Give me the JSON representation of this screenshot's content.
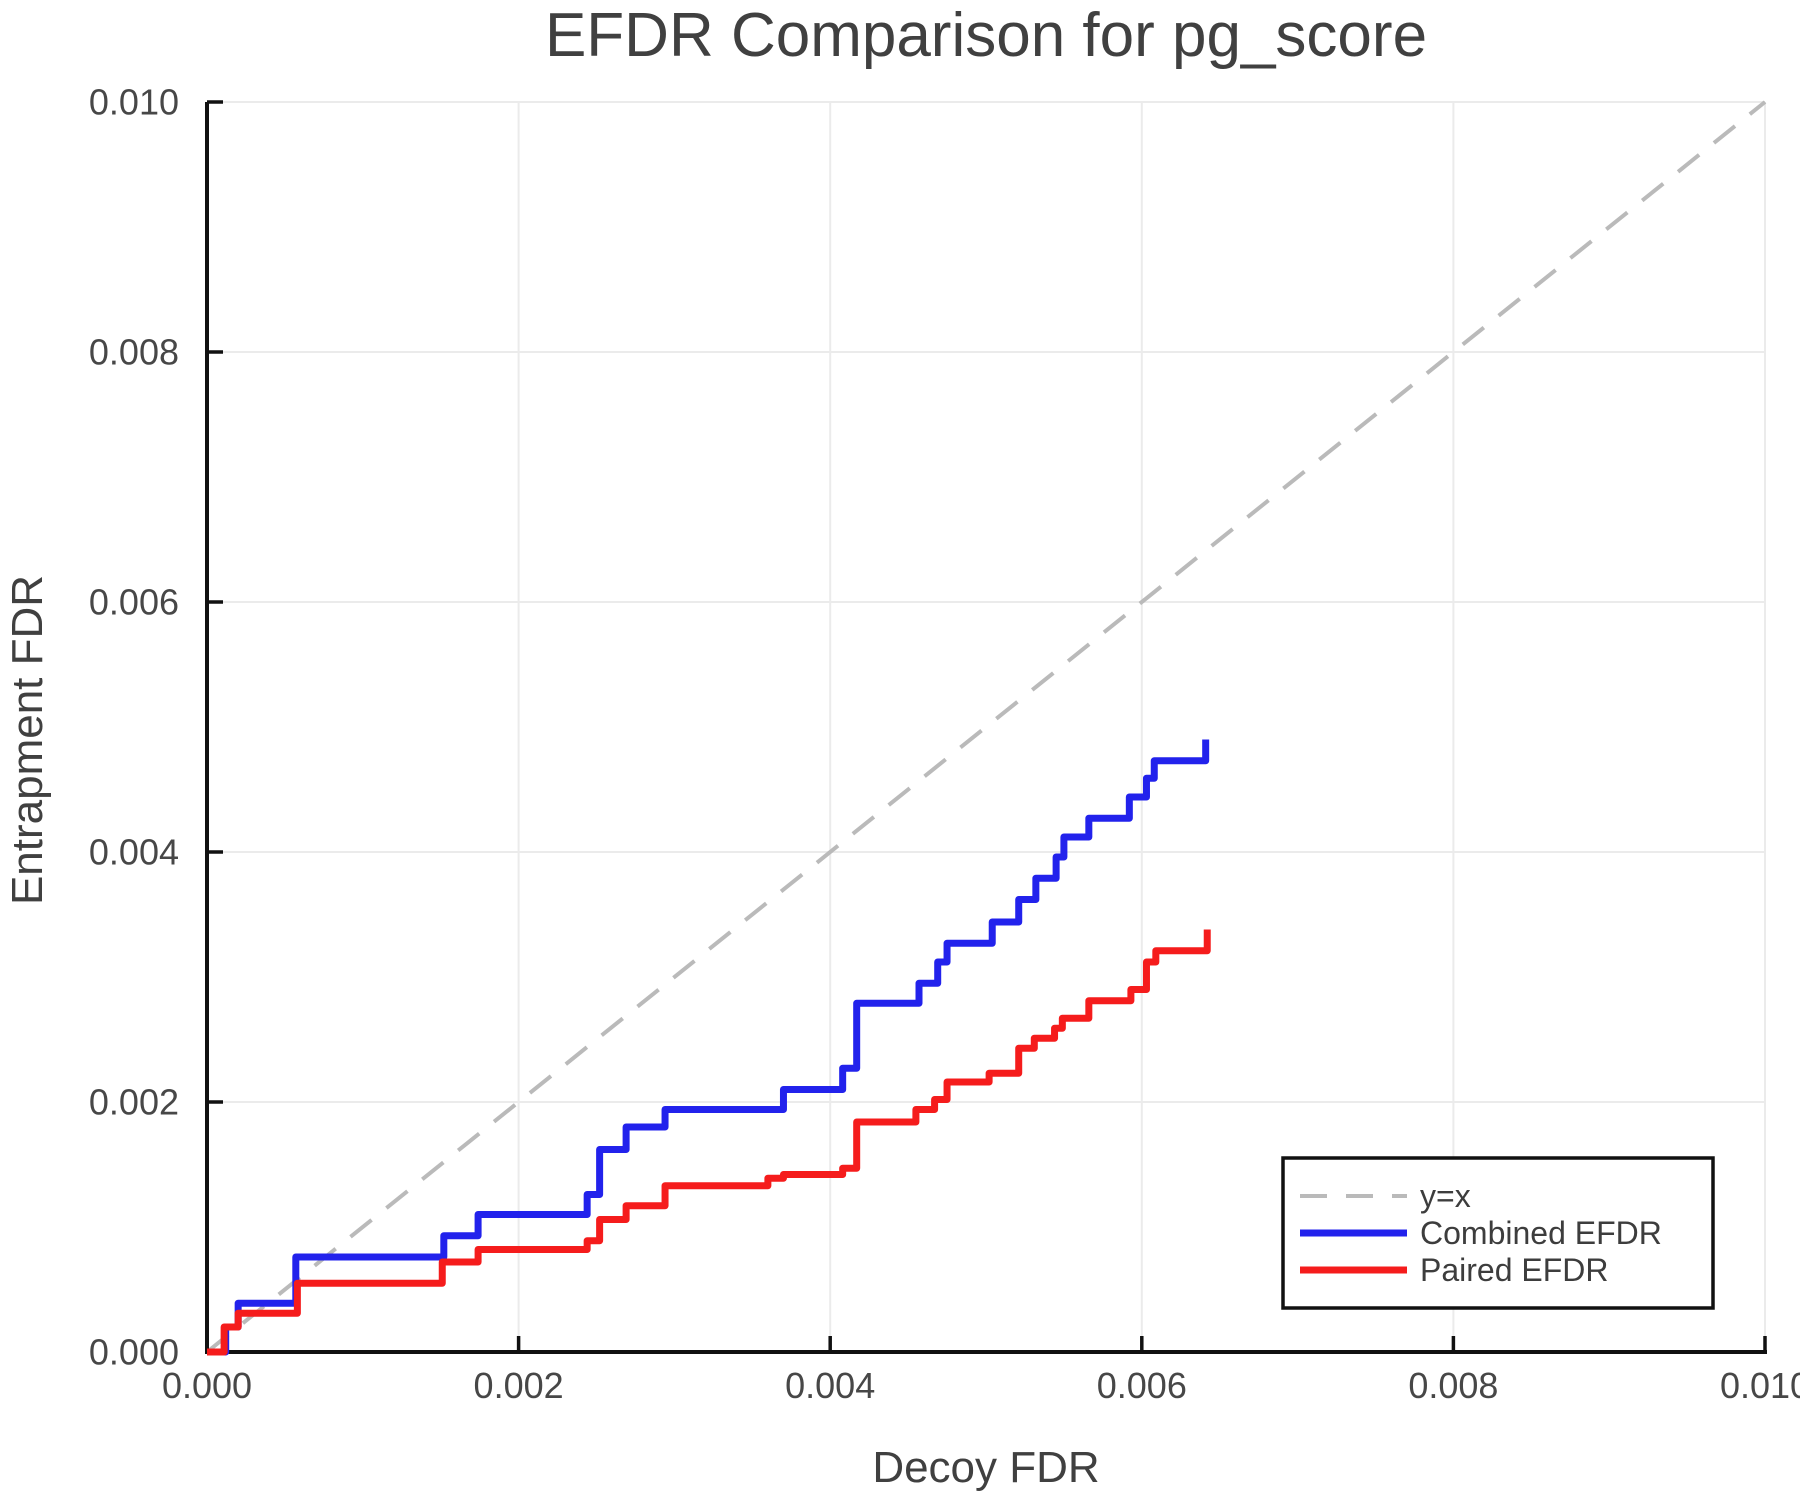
{
  "chart_data": {
    "type": "line",
    "title": "EFDR Comparison for pg_score",
    "xlabel": "Decoy FDR",
    "ylabel": "Entrapment FDR",
    "xlim": [
      0,
      0.01
    ],
    "ylim": [
      0,
      0.01
    ],
    "grid": true,
    "legend_position": "lower right",
    "xticks": {
      "values": [
        0,
        0.002,
        0.004,
        0.006,
        0.008,
        0.01
      ],
      "labels": [
        "0.000",
        "0.002",
        "0.004",
        "0.006",
        "0.008",
        "0.010"
      ]
    },
    "yticks": {
      "values": [
        0,
        0.002,
        0.004,
        0.006,
        0.008,
        0.01
      ],
      "labels": [
        "0.000",
        "0.002",
        "0.004",
        "0.006",
        "0.008",
        "0.010"
      ]
    },
    "series": [
      {
        "name": "y=x",
        "style": "dashed",
        "color": "#bababa",
        "points": [
          [
            0,
            0
          ],
          [
            0.01,
            0.01
          ]
        ]
      },
      {
        "name": "Combined EFDR",
        "style": "step",
        "color": "#2222ec",
        "start": [
          0,
          0
        ],
        "steps": [
          [
            0.00012,
            0.0002
          ],
          [
            0.0002,
            0.00039
          ],
          [
            0.00057,
            0.00076
          ],
          [
            0.00152,
            0.00093
          ],
          [
            0.00174,
            0.0011
          ],
          [
            0.00244,
            0.00126
          ],
          [
            0.00252,
            0.00162
          ],
          [
            0.00269,
            0.0018
          ],
          [
            0.00294,
            0.00194
          ],
          [
            0.0037,
            0.0021
          ],
          [
            0.00408,
            0.00227
          ],
          [
            0.00417,
            0.00279
          ],
          [
            0.00457,
            0.00295
          ],
          [
            0.00469,
            0.00312
          ],
          [
            0.00475,
            0.00327
          ],
          [
            0.00504,
            0.00344
          ],
          [
            0.00521,
            0.00362
          ],
          [
            0.00532,
            0.00379
          ],
          [
            0.00545,
            0.00396
          ],
          [
            0.0055,
            0.00412
          ],
          [
            0.00566,
            0.00427
          ],
          [
            0.00592,
            0.00444
          ],
          [
            0.00603,
            0.00459
          ],
          [
            0.00608,
            0.00473
          ],
          [
            0.00641,
            0.0049
          ]
        ]
      },
      {
        "name": "Paired EFDR",
        "style": "step",
        "color": "#f51c1c",
        "start": [
          0,
          0
        ],
        "steps": [
          [
            0.00011,
            0.0002
          ],
          [
            0.0002,
            0.00031
          ],
          [
            0.00058,
            0.00055
          ],
          [
            0.00151,
            0.00072
          ],
          [
            0.00174,
            0.00082
          ],
          [
            0.00244,
            0.00089
          ],
          [
            0.00252,
            0.00106
          ],
          [
            0.00269,
            0.00117
          ],
          [
            0.00294,
            0.00133
          ],
          [
            0.0036,
            0.00139
          ],
          [
            0.0037,
            0.00142
          ],
          [
            0.00408,
            0.00147
          ],
          [
            0.00417,
            0.00184
          ],
          [
            0.00455,
            0.00194
          ],
          [
            0.00467,
            0.00202
          ],
          [
            0.00475,
            0.00216
          ],
          [
            0.00502,
            0.00223
          ],
          [
            0.00521,
            0.00243
          ],
          [
            0.00531,
            0.00251
          ],
          [
            0.00544,
            0.00259
          ],
          [
            0.00549,
            0.00267
          ],
          [
            0.00566,
            0.00281
          ],
          [
            0.00593,
            0.0029
          ],
          [
            0.00603,
            0.00312
          ],
          [
            0.00609,
            0.00321
          ],
          [
            0.00642,
            0.00338
          ]
        ]
      }
    ],
    "colors": {
      "grid": "#ebebeb",
      "spine": "#111111",
      "diagonal": "#bababa",
      "combined": "#2222ec",
      "paired": "#f51c1c",
      "text": "#404040"
    }
  },
  "legend": {
    "items": [
      {
        "label": "y=x"
      },
      {
        "label": "Combined EFDR"
      },
      {
        "label": "Paired EFDR"
      }
    ]
  }
}
